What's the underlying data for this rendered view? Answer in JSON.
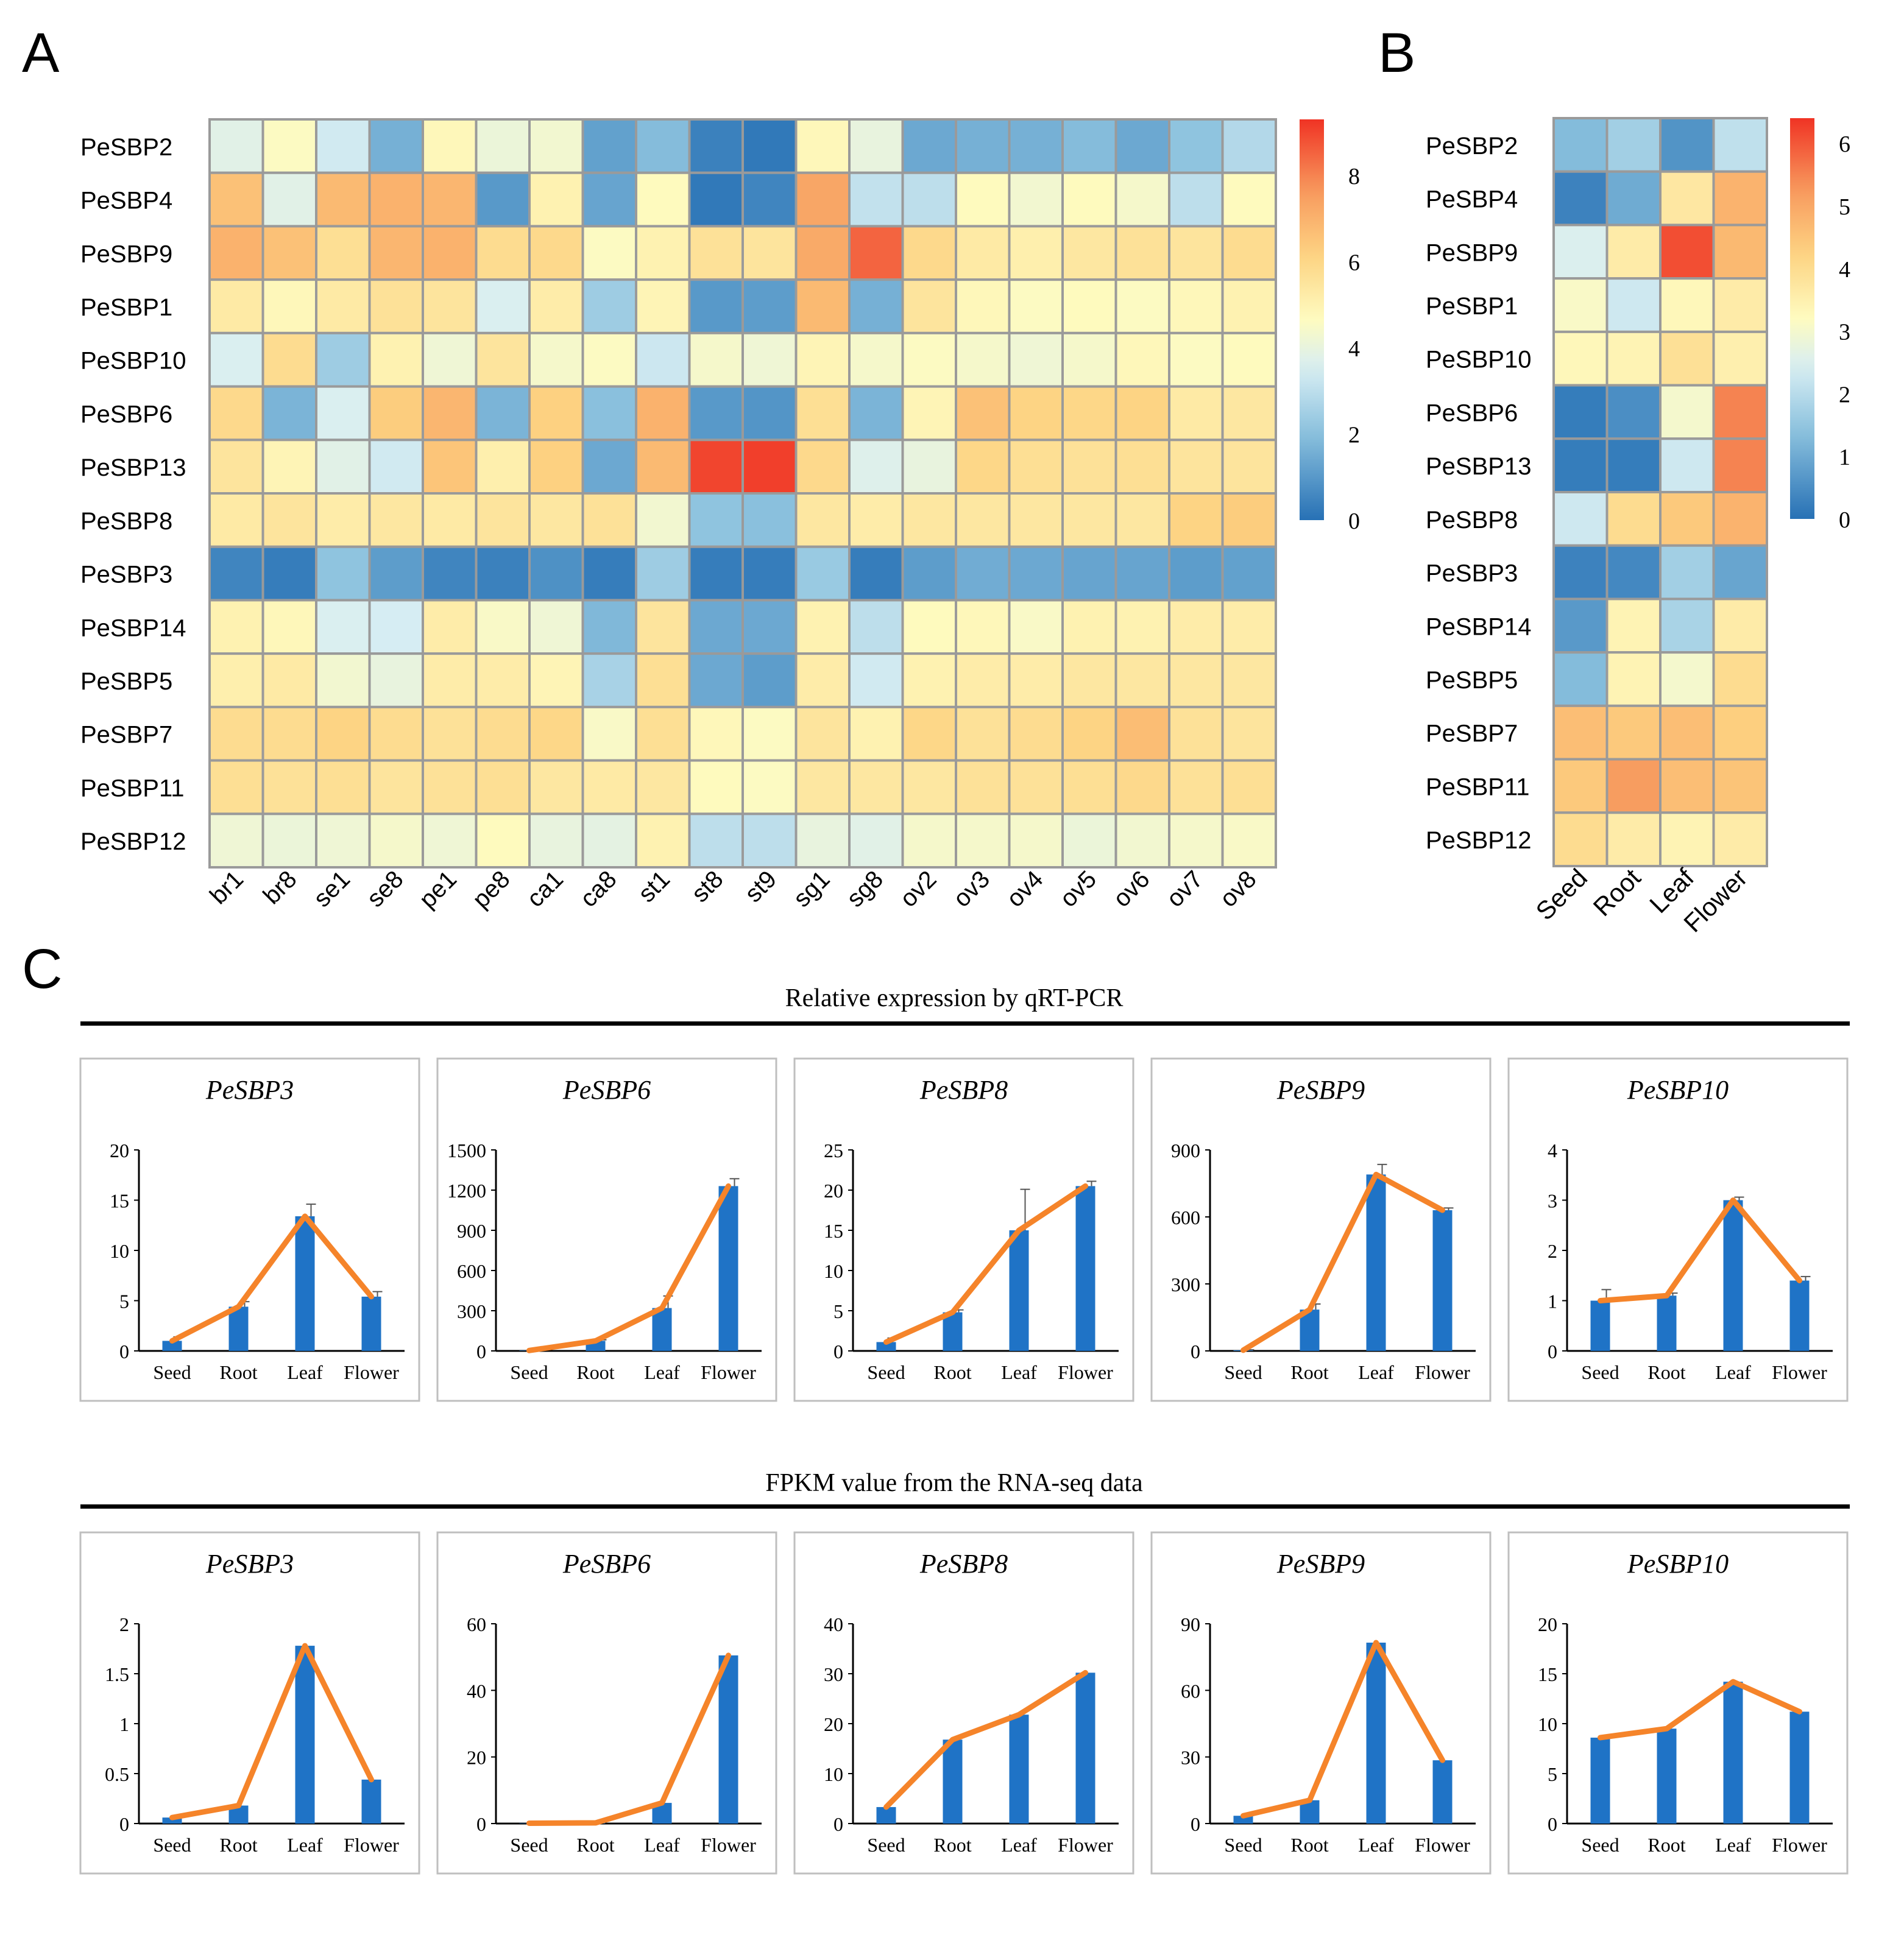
{
  "panel_labels": {
    "a": "A",
    "b": "B",
    "c": "C"
  },
  "section_titles": {
    "qrt": "Relative expression by qRT-PCR",
    "fpkm": "FPKM value from the  RNA-seq data"
  },
  "colors": {
    "bar": "#1f73c6",
    "line": "#f5842a",
    "heat_low": "#2771b5",
    "heat_mid": "#fefbc0",
    "heat_high": "#f03324",
    "grid": "#9a9a9a"
  },
  "chart_data": [
    {
      "id": "A",
      "type": "heatmap",
      "title": "",
      "rows": [
        "PeSBP2",
        "PeSBP4",
        "PeSBP9",
        "PeSBP1",
        "PeSBP10",
        "PeSBP6",
        "PeSBP13",
        "PeSBP8",
        "PeSBP3",
        "PeSBP14",
        "PeSBP5",
        "PeSBP7",
        "PeSBP11",
        "PeSBP12"
      ],
      "columns": [
        "br1",
        "br8",
        "se1",
        "se8",
        "pe1",
        "pe8",
        "ca1",
        "ca8",
        "st1",
        "st8",
        "st9",
        "sg1",
        "sg8",
        "ov2",
        "ov3",
        "ov4",
        "ov5",
        "ov6",
        "ov7",
        "ov8"
      ],
      "values": [
        [
          3.8,
          4.6,
          3.4,
          1.6,
          4.8,
          4.1,
          4.3,
          1.2,
          1.9,
          0.4,
          0.2,
          4.8,
          4.0,
          1.4,
          1.6,
          1.6,
          1.9,
          1.4,
          2.1,
          2.8
        ],
        [
          6.6,
          3.8,
          6.8,
          7.0,
          6.9,
          1.0,
          5.0,
          1.3,
          4.7,
          0.2,
          0.5,
          7.3,
          3.1,
          3.0,
          4.7,
          4.3,
          4.7,
          4.4,
          3.0,
          4.7
        ],
        [
          7.0,
          6.6,
          5.7,
          6.9,
          7.0,
          5.8,
          5.9,
          4.6,
          5.0,
          5.6,
          5.5,
          7.2,
          8.5,
          5.9,
          5.3,
          5.1,
          5.4,
          5.6,
          5.5,
          5.8
        ],
        [
          5.3,
          4.8,
          5.3,
          5.6,
          5.5,
          3.6,
          5.2,
          2.4,
          4.9,
          1.0,
          1.1,
          6.8,
          1.6,
          5.5,
          4.8,
          4.6,
          4.7,
          4.6,
          4.8,
          5.0
        ],
        [
          3.6,
          5.8,
          2.4,
          5.0,
          4.2,
          5.5,
          4.4,
          4.6,
          3.3,
          4.4,
          4.2,
          4.9,
          4.4,
          4.6,
          4.4,
          4.2,
          4.4,
          4.8,
          4.6,
          4.7
        ],
        [
          5.9,
          1.7,
          3.6,
          6.3,
          6.9,
          1.7,
          6.2,
          2.0,
          7.0,
          1.0,
          0.9,
          5.7,
          1.7,
          4.9,
          6.6,
          6.1,
          6.0,
          6.1,
          5.3,
          5.4
        ],
        [
          5.5,
          4.9,
          3.8,
          3.4,
          6.5,
          5.1,
          6.2,
          1.4,
          6.8,
          9.0,
          9.1,
          5.9,
          3.7,
          4.0,
          6.0,
          5.7,
          5.6,
          5.7,
          5.5,
          5.5
        ],
        [
          5.3,
          5.5,
          5.2,
          5.4,
          5.3,
          5.5,
          5.4,
          5.6,
          4.3,
          2.1,
          2.0,
          5.4,
          5.2,
          5.4,
          5.4,
          5.4,
          5.4,
          5.4,
          6.1,
          6.3
        ],
        [
          0.5,
          0.3,
          2.1,
          1.1,
          0.5,
          0.4,
          0.8,
          0.3,
          2.4,
          0.3,
          0.3,
          2.3,
          0.3,
          1.1,
          1.5,
          1.4,
          1.3,
          1.3,
          1.1,
          1.2
        ],
        [
          5.0,
          4.8,
          3.6,
          3.5,
          5.2,
          4.5,
          4.2,
          1.8,
          5.5,
          1.4,
          1.4,
          5.0,
          3.0,
          4.7,
          4.8,
          4.5,
          5.0,
          5.0,
          5.2,
          5.2
        ],
        [
          5.1,
          5.3,
          4.3,
          4.0,
          5.2,
          5.2,
          4.9,
          2.6,
          5.7,
          1.4,
          1.1,
          5.2,
          3.4,
          5.0,
          5.2,
          5.2,
          5.4,
          5.4,
          5.4,
          5.4
        ],
        [
          5.8,
          5.8,
          6.1,
          5.8,
          5.6,
          5.8,
          6.0,
          4.5,
          5.7,
          4.8,
          4.6,
          5.5,
          5.0,
          6.0,
          5.6,
          5.8,
          6.1,
          6.7,
          5.6,
          5.5
        ],
        [
          5.7,
          5.6,
          5.7,
          5.5,
          5.6,
          5.7,
          5.4,
          5.3,
          5.4,
          4.7,
          4.6,
          5.4,
          5.4,
          5.4,
          5.6,
          5.6,
          5.7,
          5.9,
          5.6,
          5.7
        ],
        [
          4.2,
          4.1,
          4.2,
          4.4,
          4.2,
          4.7,
          4.0,
          3.9,
          5.0,
          3.0,
          3.0,
          4.0,
          3.8,
          4.4,
          4.4,
          4.4,
          4.1,
          4.3,
          4.4,
          4.5
        ]
      ],
      "colorbar": {
        "min": 0,
        "max": 9.3,
        "ticks": [
          0,
          2,
          4,
          6,
          8
        ]
      }
    },
    {
      "id": "B",
      "type": "heatmap",
      "title": "",
      "rows": [
        "PeSBP2",
        "PeSBP4",
        "PeSBP9",
        "PeSBP1",
        "PeSBP10",
        "PeSBP6",
        "PeSBP13",
        "PeSBP8",
        "PeSBP3",
        "PeSBP14",
        "PeSBP5",
        "PeSBP7",
        "PeSBP11",
        "PeSBP12"
      ],
      "columns": [
        "Seed",
        "Root",
        "Leaf",
        "Flower"
      ],
      "values": [
        [
          1.3,
          1.7,
          0.6,
          2.1
        ],
        [
          0.3,
          1.0,
          3.7,
          4.8
        ],
        [
          2.5,
          3.6,
          6.1,
          4.7
        ],
        [
          3.1,
          2.3,
          3.3,
          3.6
        ],
        [
          3.3,
          3.4,
          3.9,
          3.5
        ],
        [
          0.2,
          0.5,
          3.0,
          5.5
        ],
        [
          0.2,
          0.2,
          2.3,
          5.5
        ],
        [
          2.3,
          4.0,
          4.4,
          4.8
        ],
        [
          0.3,
          0.4,
          1.7,
          0.9
        ],
        [
          0.7,
          3.4,
          1.8,
          3.6
        ],
        [
          1.3,
          3.4,
          3.0,
          4.0
        ],
        [
          4.6,
          4.4,
          4.6,
          4.3
        ],
        [
          4.4,
          5.2,
          4.6,
          4.5
        ],
        [
          4.0,
          3.6,
          3.4,
          3.6
        ]
      ],
      "colorbar": {
        "min": 0,
        "max": 6.4,
        "ticks": [
          0,
          1,
          2,
          3,
          4,
          5,
          6
        ]
      }
    },
    {
      "id": "C-qrt-PeSBP3",
      "type": "bar",
      "title": "PeSBP3",
      "section": "qrt",
      "categories": [
        "Seed",
        "Root",
        "Leaf",
        "Flower"
      ],
      "values": [
        1.0,
        4.4,
        13.4,
        5.4
      ],
      "errors": [
        0.4,
        0.5,
        1.2,
        0.5
      ],
      "ylim": [
        0,
        20
      ],
      "yticks": [
        0,
        5,
        10,
        15,
        20
      ],
      "xlabel": "",
      "ylabel": ""
    },
    {
      "id": "C-qrt-PeSBP6",
      "type": "bar",
      "title": "PeSBP6",
      "section": "qrt",
      "categories": [
        "Seed",
        "Root",
        "Leaf",
        "Flower"
      ],
      "values": [
        3,
        75,
        320,
        1230
      ],
      "errors": [
        3,
        8,
        90,
        55
      ],
      "ylim": [
        0,
        1500
      ],
      "yticks": [
        0,
        300,
        600,
        900,
        1200,
        1500
      ],
      "xlabel": "",
      "ylabel": ""
    },
    {
      "id": "C-qrt-PeSBP8",
      "type": "bar",
      "title": "PeSBP8",
      "section": "qrt",
      "categories": [
        "Seed",
        "Root",
        "Leaf",
        "Flower"
      ],
      "values": [
        1.1,
        4.8,
        15.0,
        20.5
      ],
      "errors": [
        0.5,
        0.3,
        5.1,
        0.6
      ],
      "ylim": [
        0,
        25
      ],
      "yticks": [
        0,
        5,
        10,
        15,
        20,
        25
      ],
      "xlabel": "",
      "ylabel": ""
    },
    {
      "id": "C-qrt-PeSBP9",
      "type": "bar",
      "title": "PeSBP9",
      "section": "qrt",
      "categories": [
        "Seed",
        "Root",
        "Leaf",
        "Flower"
      ],
      "values": [
        3,
        185,
        790,
        630
      ],
      "errors": [
        2,
        25,
        45,
        10
      ],
      "ylim": [
        0,
        900
      ],
      "yticks": [
        0,
        300,
        600,
        900
      ],
      "xlabel": "",
      "ylabel": ""
    },
    {
      "id": "C-qrt-PeSBP10",
      "type": "bar",
      "title": "PeSBP10",
      "section": "qrt",
      "categories": [
        "Seed",
        "Root",
        "Leaf",
        "Flower"
      ],
      "values": [
        1.0,
        1.1,
        3.0,
        1.4
      ],
      "errors": [
        0.22,
        0.05,
        0.06,
        0.08
      ],
      "ylim": [
        0,
        4
      ],
      "yticks": [
        0,
        1,
        2,
        3,
        4
      ],
      "xlabel": "",
      "ylabel": ""
    },
    {
      "id": "C-fpkm-PeSBP3",
      "type": "bar",
      "title": "PeSBP3",
      "section": "fpkm",
      "categories": [
        "Seed",
        "Root",
        "Leaf",
        "Flower"
      ],
      "values": [
        0.06,
        0.18,
        1.78,
        0.44
      ],
      "ylim": [
        0,
        2
      ],
      "yticks": [
        0,
        0.5,
        1,
        1.5,
        2
      ],
      "ytick_labels": [
        "0",
        "0.5",
        "1",
        "1.5",
        "2"
      ],
      "xlabel": "",
      "ylabel": ""
    },
    {
      "id": "C-fpkm-PeSBP6",
      "type": "bar",
      "title": "PeSBP6",
      "section": "fpkm",
      "categories": [
        "Seed",
        "Root",
        "Leaf",
        "Flower"
      ],
      "values": [
        0.1,
        0.2,
        6.2,
        50.5
      ],
      "ylim": [
        0,
        60
      ],
      "yticks": [
        0,
        20,
        40,
        60
      ],
      "xlabel": "",
      "ylabel": ""
    },
    {
      "id": "C-fpkm-PeSBP8",
      "type": "bar",
      "title": "PeSBP8",
      "section": "fpkm",
      "categories": [
        "Seed",
        "Root",
        "Leaf",
        "Flower"
      ],
      "values": [
        3.3,
        16.8,
        21.8,
        30.2
      ],
      "ylim": [
        0,
        40
      ],
      "yticks": [
        0,
        10,
        20,
        30,
        40
      ],
      "xlabel": "",
      "ylabel": ""
    },
    {
      "id": "C-fpkm-PeSBP9",
      "type": "bar",
      "title": "PeSBP9",
      "section": "fpkm",
      "categories": [
        "Seed",
        "Root",
        "Leaf",
        "Flower"
      ],
      "values": [
        3.5,
        10.5,
        81.5,
        28.5
      ],
      "ylim": [
        0,
        90
      ],
      "yticks": [
        0,
        30,
        60,
        90
      ],
      "xlabel": "",
      "ylabel": ""
    },
    {
      "id": "C-fpkm-PeSBP10",
      "type": "bar",
      "title": "PeSBP10",
      "section": "fpkm",
      "categories": [
        "Seed",
        "Root",
        "Leaf",
        "Flower"
      ],
      "values": [
        8.6,
        9.5,
        14.2,
        11.2
      ],
      "ylim": [
        0,
        20
      ],
      "yticks": [
        0,
        5,
        10,
        15,
        20
      ],
      "xlabel": "",
      "ylabel": ""
    }
  ]
}
